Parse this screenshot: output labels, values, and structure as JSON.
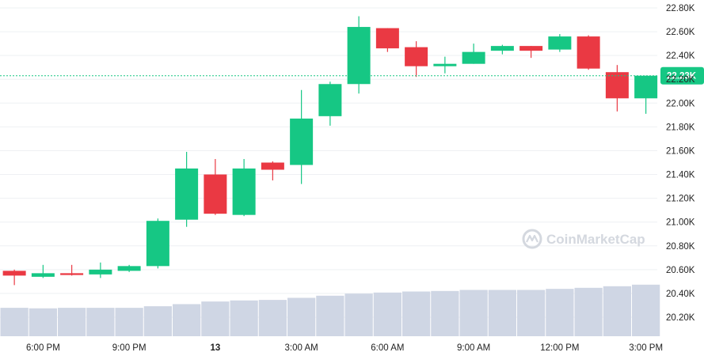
{
  "chart_data": {
    "type": "candlestick",
    "y_axis": {
      "range": [
        20050,
        22850
      ],
      "position": "right",
      "ticks": [
        "22.80K",
        "22.60K",
        "22.40K",
        "22.20K",
        "22.00K",
        "21.80K",
        "21.60K",
        "21.40K",
        "21.20K",
        "21.00K",
        "20.80K",
        "20.60K",
        "20.40K",
        "20.20K"
      ],
      "tick_values": [
        22800,
        22600,
        22400,
        22200,
        22000,
        21800,
        21600,
        21400,
        21200,
        21000,
        20800,
        20600,
        20400,
        20200
      ]
    },
    "x_axis": {
      "range": [
        0,
        24
      ],
      "ticks": [
        {
          "label": "6:00 PM",
          "x": 1.5,
          "bold": false
        },
        {
          "label": "9:00 PM",
          "x": 4.5,
          "bold": false
        },
        {
          "label": "13",
          "x": 7.5,
          "bold": true
        },
        {
          "label": "3:00 AM",
          "x": 10.5,
          "bold": false
        },
        {
          "label": "6:00 AM",
          "x": 13.5,
          "bold": false
        },
        {
          "label": "9:00 AM",
          "x": 16.5,
          "bold": false
        },
        {
          "label": "12:00 PM",
          "x": 19.5,
          "bold": false
        },
        {
          "label": "3:00 PM",
          "x": 22.5,
          "bold": false
        }
      ]
    },
    "candles": [
      {
        "o": 20590,
        "h": 20600,
        "l": 20470,
        "c": 20550
      },
      {
        "o": 20540,
        "h": 20640,
        "l": 20530,
        "c": 20570
      },
      {
        "o": 20570,
        "h": 20640,
        "l": 20550,
        "c": 20555
      },
      {
        "o": 20560,
        "h": 20660,
        "l": 20530,
        "c": 20600
      },
      {
        "o": 20590,
        "h": 20640,
        "l": 20580,
        "c": 20630
      },
      {
        "o": 20630,
        "h": 21030,
        "l": 20610,
        "c": 21010
      },
      {
        "o": 21020,
        "h": 21590,
        "l": 20960,
        "c": 21450
      },
      {
        "o": 21400,
        "h": 21530,
        "l": 21060,
        "c": 21070
      },
      {
        "o": 21060,
        "h": 21530,
        "l": 21050,
        "c": 21450
      },
      {
        "o": 21500,
        "h": 21510,
        "l": 21350,
        "c": 21440
      },
      {
        "o": 21480,
        "h": 22110,
        "l": 21320,
        "c": 21870
      },
      {
        "o": 21890,
        "h": 22180,
        "l": 21810,
        "c": 22160
      },
      {
        "o": 22160,
        "h": 22730,
        "l": 22080,
        "c": 22640
      },
      {
        "o": 22630,
        "h": 22630,
        "l": 22430,
        "c": 22460
      },
      {
        "o": 22470,
        "h": 22520,
        "l": 22220,
        "c": 22310
      },
      {
        "o": 22310,
        "h": 22390,
        "l": 22250,
        "c": 22330
      },
      {
        "o": 22330,
        "h": 22500,
        "l": 22330,
        "c": 22430
      },
      {
        "o": 22440,
        "h": 22490,
        "l": 22410,
        "c": 22480
      },
      {
        "o": 22480,
        "h": 22480,
        "l": 22380,
        "c": 22440
      },
      {
        "o": 22450,
        "h": 22580,
        "l": 22430,
        "c": 22560
      },
      {
        "o": 22560,
        "h": 22570,
        "l": 22280,
        "c": 22290
      },
      {
        "o": 22260,
        "h": 22320,
        "l": 21930,
        "c": 22040
      },
      {
        "o": 22040,
        "h": 22230,
        "l": 21910,
        "c": 22230
      }
    ],
    "volume": [
      0.27,
      0.265,
      0.27,
      0.27,
      0.27,
      0.285,
      0.305,
      0.33,
      0.34,
      0.345,
      0.365,
      0.385,
      0.405,
      0.415,
      0.425,
      0.43,
      0.44,
      0.44,
      0.44,
      0.45,
      0.46,
      0.475,
      0.49
    ],
    "last_price": {
      "value": 22230,
      "label": "22.23K"
    },
    "watermark": "CoinMarketCap",
    "colors": {
      "up": "#16c784",
      "down": "#ea3943",
      "volume": "#cfd6e4",
      "grid": "#eef0f3",
      "last_price": "#16c784",
      "axis_text": "#222222",
      "watermark": "#d4d8df"
    }
  }
}
